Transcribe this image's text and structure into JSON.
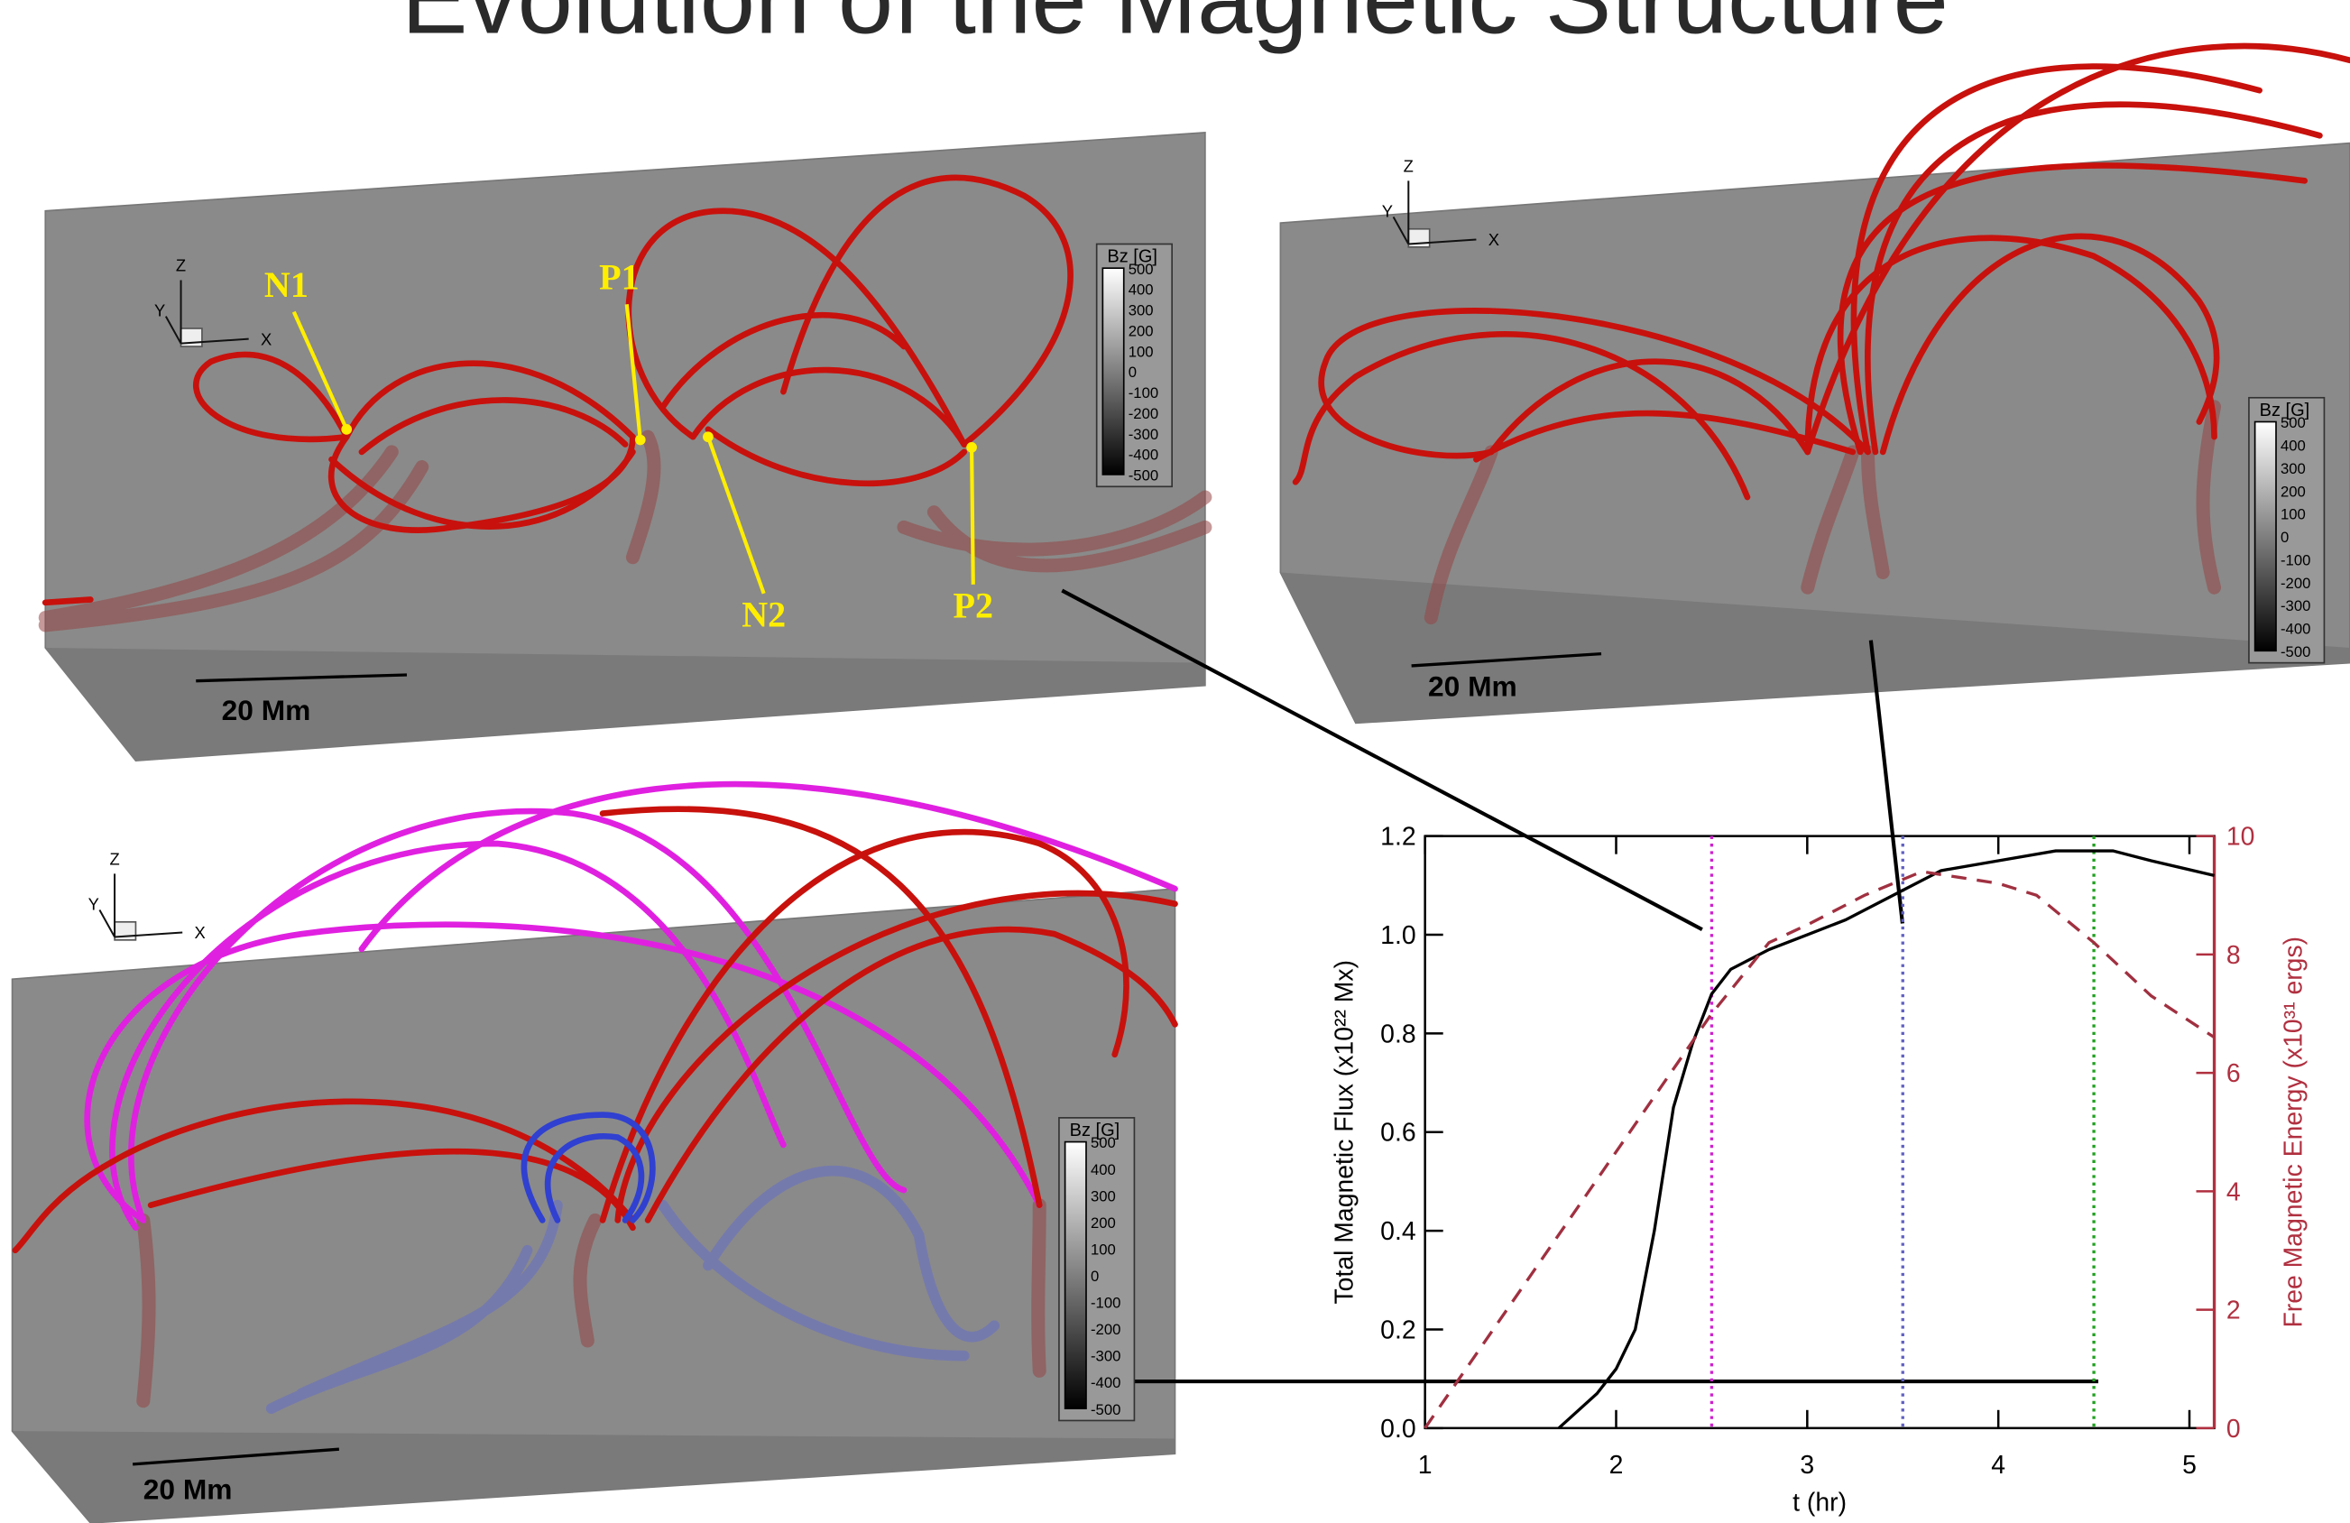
{
  "title": "Evolution of the Magnetic Structure",
  "panels": [
    {
      "axes": [
        "Z",
        "Y",
        "X"
      ],
      "scale_bar": "20 Mm",
      "colorbar": {
        "title": "Bz [G]",
        "labels": [
          "500",
          "400",
          "300",
          "200",
          "100",
          "0",
          "-100",
          "-200",
          "-300",
          "-400",
          "-500"
        ]
      },
      "annotations": [
        "N1",
        "P1",
        "N2",
        "P2"
      ]
    },
    {
      "axes": [
        "Z",
        "Y",
        "X"
      ],
      "scale_bar": "20 Mm",
      "colorbar": {
        "title": "Bz [G]",
        "labels": [
          "500",
          "400",
          "300",
          "200",
          "100",
          "0",
          "-100",
          "-200",
          "-300",
          "-400",
          "-500"
        ]
      }
    },
    {
      "axes": [
        "Z",
        "Y",
        "X"
      ],
      "scale_bar": "20 Mm",
      "colorbar": {
        "title": "Bz [G]",
        "labels": [
          "500",
          "400",
          "300",
          "200",
          "100",
          "0",
          "-100",
          "-200",
          "-300",
          "-400",
          "-500"
        ]
      }
    }
  ],
  "chart_data": {
    "type": "line",
    "xlabel": "t (hr)",
    "ylabel": "Total Magnetic Flux (x10²² Mx)",
    "y2label": "Free Magnetic Energy (x10³¹ ergs)",
    "xlim": [
      1,
      5.13
    ],
    "ylim": [
      0,
      1.2
    ],
    "y2lim": [
      0,
      10
    ],
    "xticks": [
      1,
      2,
      3,
      4,
      5
    ],
    "yticks": [
      {
        "value": 0,
        "label": "0.0"
      },
      0.2,
      0.4,
      0.6,
      0.8,
      {
        "value": 1,
        "label": "1.0"
      },
      1.2
    ],
    "y2ticks": [
      0,
      2,
      4,
      6,
      8,
      10
    ],
    "y2color": "#b03040",
    "vlines": [
      2.5,
      3.5,
      4.5
    ],
    "vline_colors": [
      "#d020d0",
      "#6060c0",
      "#20a020"
    ],
    "series": [
      {
        "color": "#000000",
        "dash": "none",
        "x": [
          1.7,
          1.9,
          2.0,
          2.1,
          2.2,
          2.3,
          2.4,
          2.5,
          2.6,
          2.8,
          3.0,
          3.2,
          3.5,
          3.7,
          4.0,
          4.3,
          4.6,
          4.8,
          5.13
        ],
        "values": [
          0,
          0.07,
          0.12,
          0.2,
          0.4,
          0.65,
          0.78,
          0.88,
          0.93,
          0.97,
          1.0,
          1.03,
          1.09,
          1.13,
          1.15,
          1.17,
          1.17,
          1.15,
          1.12
        ]
      },
      {
        "color": "#a03040",
        "dash": "10 7",
        "axis": "y2",
        "x": [
          1.0,
          2.5,
          2.8,
          3.0,
          3.3,
          3.6,
          3.8,
          4.0,
          4.2,
          4.5,
          4.8,
          5.13
        ],
        "values": [
          0,
          7.0,
          8.2,
          8.5,
          9.0,
          9.4,
          9.3,
          9.2,
          9.0,
          8.2,
          7.3,
          6.6
        ]
      }
    ]
  }
}
